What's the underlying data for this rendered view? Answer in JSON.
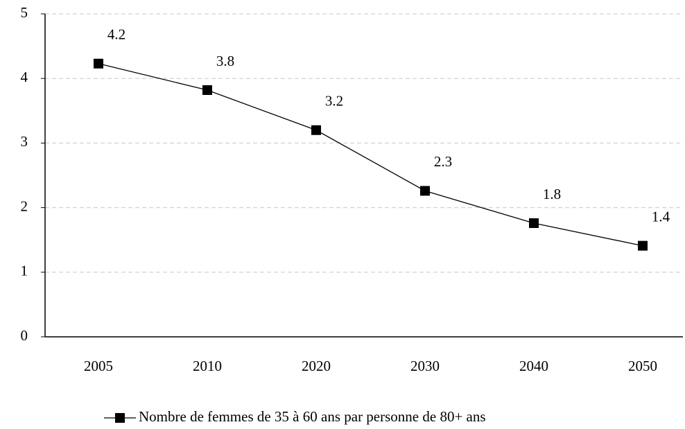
{
  "chart_data": {
    "type": "line",
    "categories": [
      "2005",
      "2010",
      "2020",
      "2030",
      "2040",
      "2050"
    ],
    "series": [
      {
        "name": "Nombre de femmes de 35 à 60 ans par personne de 80+ ans",
        "color": "#000000",
        "values": [
          4.23,
          3.82,
          3.2,
          2.26,
          1.76,
          1.41
        ],
        "value_labels": [
          "4.2",
          "3.8",
          "3.2",
          "2.3",
          "1.8",
          "1.4"
        ]
      }
    ],
    "ylim": [
      0,
      5
    ],
    "yticks": [
      0,
      1,
      2,
      3,
      4,
      5
    ],
    "grid": true,
    "legend": "bottom"
  }
}
